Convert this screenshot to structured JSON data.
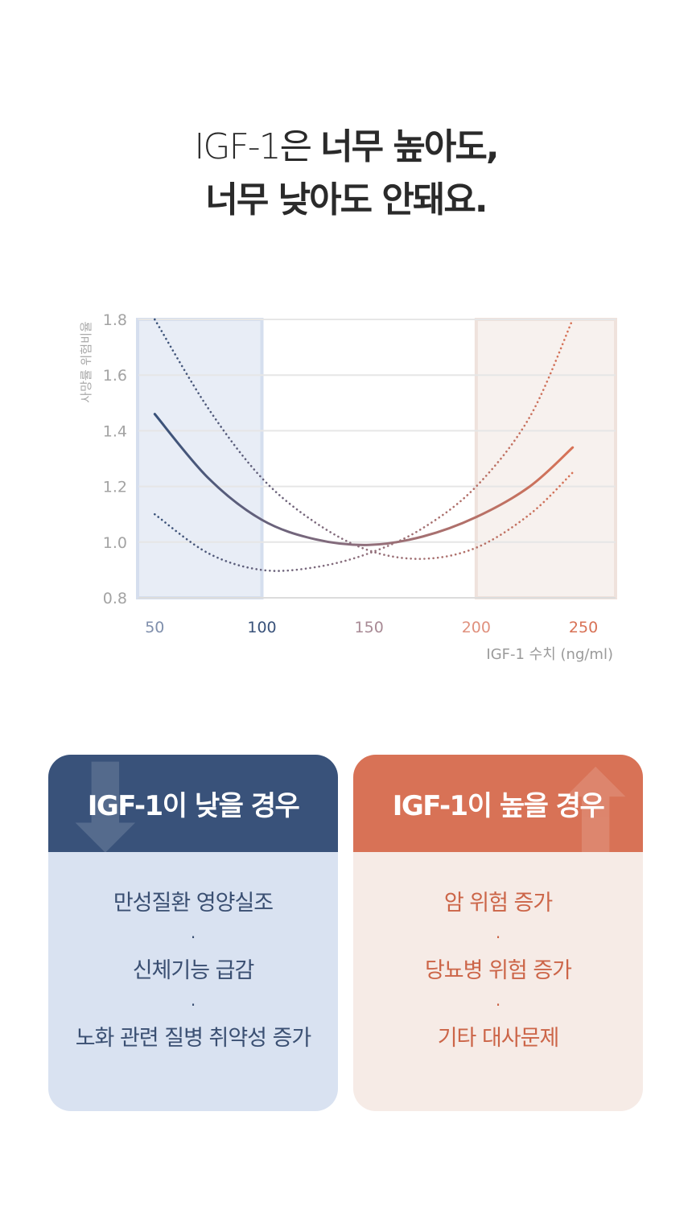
{
  "headline": {
    "line1_light": "IGF-1은 ",
    "line1_bold": "너무 높아도,",
    "line2": "너무 낮아도 안돼요."
  },
  "chart_data": {
    "type": "line",
    "title": "",
    "xlabel": "IGF-1 수치 (ng/ml)",
    "ylabel": "사망률 위험비율",
    "xlim": [
      42,
      265
    ],
    "ylim": [
      0.8,
      1.8
    ],
    "x_ticks": [
      50,
      100,
      150,
      200,
      250
    ],
    "y_ticks": [
      "0.8",
      "1.0",
      "1.2",
      "1.4",
      "1.6",
      "1.8"
    ],
    "grid": true,
    "shaded_regions": [
      {
        "x": [
          42,
          100
        ],
        "color": "#e8edf6",
        "border": "#d5deee"
      },
      {
        "x": [
          200,
          265
        ],
        "color": "#f7f1ee",
        "border": "#efe2dc"
      }
    ],
    "series": [
      {
        "style": "solid",
        "x": [
          50,
          75,
          100,
          125,
          150,
          175,
          200,
          225,
          245
        ],
        "values": [
          1.46,
          1.23,
          1.08,
          1.01,
          0.99,
          1.02,
          1.09,
          1.2,
          1.34
        ]
      },
      {
        "style": "dotted",
        "x": [
          50,
          75,
          100,
          125,
          150,
          175,
          200,
          225,
          245
        ],
        "values": [
          1.8,
          1.48,
          1.23,
          1.07,
          0.97,
          0.94,
          0.98,
          1.1,
          1.25
        ]
      },
      {
        "style": "dotted",
        "x": [
          50,
          75,
          100,
          125,
          150,
          175,
          200,
          225,
          245
        ],
        "values": [
          1.1,
          0.96,
          0.9,
          0.91,
          0.96,
          1.05,
          1.2,
          1.45,
          1.8
        ]
      }
    ],
    "colors": {
      "low": "#39527a",
      "high": "#d87256",
      "mid": "#a87a82"
    }
  },
  "cards": {
    "low": {
      "title": "IGF-1이 낮을 경우",
      "deco_icon": "arrow-down-icon",
      "items": [
        "만성질환 영양실조",
        "신체기능 급감",
        "노화 관련 질병 취약성 증가"
      ],
      "separator": "·"
    },
    "high": {
      "title": "IGF-1이 높을 경우",
      "deco_icon": "arrow-up-icon",
      "items": [
        "암 위험 증가",
        "당뇨병 위험 증가",
        "기타 대사문제"
      ],
      "separator": "·"
    }
  }
}
